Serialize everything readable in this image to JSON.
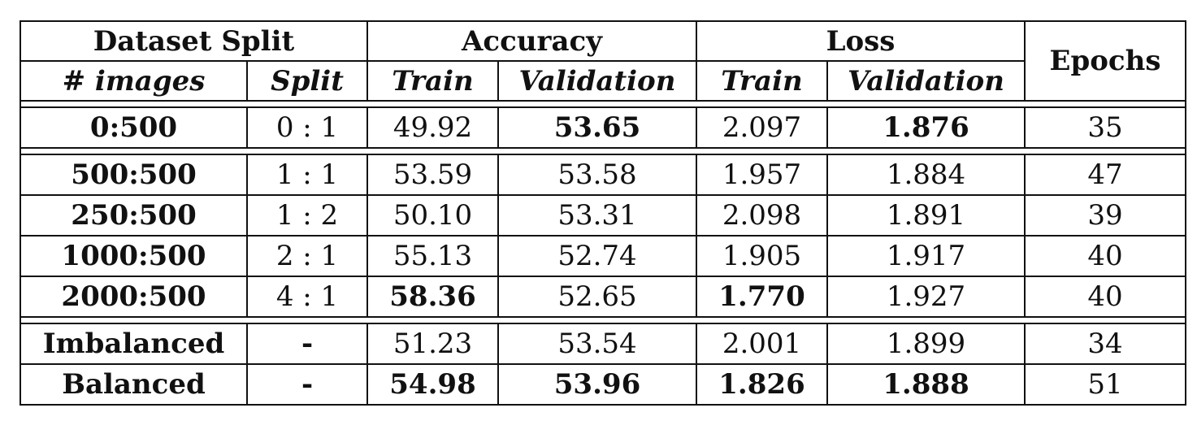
{
  "header": {
    "dataset_split": "Dataset Split",
    "accuracy": "Accuracy",
    "loss": "Loss",
    "epochs": "Epochs",
    "num_images": "# images",
    "split": "Split",
    "acc_train": "Train",
    "acc_validation": "Validation",
    "loss_train": "Train",
    "loss_validation": "Validation"
  },
  "rows": [
    {
      "images": "0:500",
      "split": "0 : 1",
      "acc_train": "49.92",
      "acc_val": "53.65",
      "loss_train": "2.097",
      "loss_val": "1.876",
      "epochs": "35"
    },
    {
      "images": "500:500",
      "split": "1 : 1",
      "acc_train": "53.59",
      "acc_val": "53.58",
      "loss_train": "1.957",
      "loss_val": "1.884",
      "epochs": "47"
    },
    {
      "images": "250:500",
      "split": "1 : 2",
      "acc_train": "50.10",
      "acc_val": "53.31",
      "loss_train": "2.098",
      "loss_val": "1.891",
      "epochs": "39"
    },
    {
      "images": "1000:500",
      "split": "2 : 1",
      "acc_train": "55.13",
      "acc_val": "52.74",
      "loss_train": "1.905",
      "loss_val": "1.917",
      "epochs": "40"
    },
    {
      "images": "2000:500",
      "split": "4 : 1",
      "acc_train": "58.36",
      "acc_val": "52.65",
      "loss_train": "1.770",
      "loss_val": "1.927",
      "epochs": "40"
    },
    {
      "images": "Imbalanced",
      "split": "-",
      "acc_train": "51.23",
      "acc_val": "53.54",
      "loss_train": "2.001",
      "loss_val": "1.899",
      "epochs": "34"
    },
    {
      "images": "Balanced",
      "split": "-",
      "acc_train": "54.98",
      "acc_val": "53.96",
      "loss_train": "1.826",
      "loss_val": "1.888",
      "epochs": "51"
    }
  ]
}
